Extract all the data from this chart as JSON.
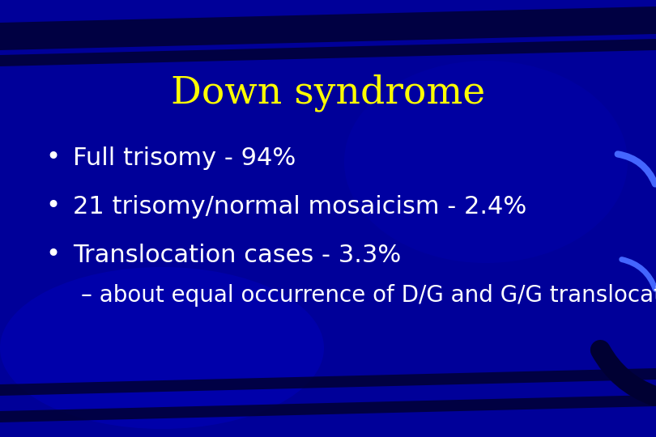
{
  "title": "Down syndrome",
  "title_color": "#FFFF00",
  "title_fontsize": 34,
  "bullet_points": [
    "Full trisomy - 94%",
    "21 trisomy/normal mosaicism - 2.4%",
    "Translocation cases - 3.3%"
  ],
  "sub_bullet": "– about equal occurrence of D/G and G/G translocation",
  "bullet_color": "#FFFFFF",
  "sub_bullet_color": "#FFFFFF",
  "bullet_fontsize": 22,
  "sub_bullet_fontsize": 20,
  "background_color": "#000099",
  "stripe_color": "#000044",
  "fig_width": 8.1,
  "fig_height": 5.4,
  "dpi": 100
}
